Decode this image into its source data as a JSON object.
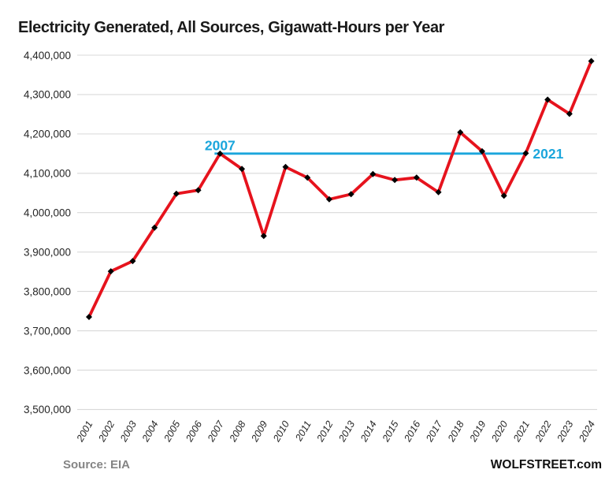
{
  "page": {
    "title": "Electricity Generated, All Sources, Gigawatt-Hours per Year",
    "footer": {
      "source": "Source: EIA",
      "brand": "WOLFSTREET.com"
    }
  },
  "colors": {
    "background": "#ffffff",
    "series_line": "#e6131d",
    "marker": "#000000",
    "annotation": "#1ba6dc",
    "gridline": "#d9d9d9",
    "title_text": "#1a1a1a",
    "axis_text": "#262626",
    "source_text": "#848484",
    "brand_text": "#111111"
  },
  "chart_data": {
    "type": "line",
    "title": "Electricity Generated, All Sources, Gigawatt-Hours per Year",
    "xlabel": "",
    "ylabel": "",
    "x": [
      2001,
      2002,
      2003,
      2004,
      2005,
      2006,
      2007,
      2008,
      2009,
      2010,
      2011,
      2012,
      2013,
      2014,
      2015,
      2016,
      2017,
      2018,
      2019,
      2020,
      2021,
      2022,
      2023,
      2024
    ],
    "series": [
      {
        "name": "Electricity generated, all sources (gigawatt-hours per year)",
        "color": "#e6131d",
        "values": [
          3735000,
          3851000,
          3877000,
          3962000,
          4048000,
          4057000,
          4150000,
          4111000,
          3941000,
          4116000,
          4089000,
          4034000,
          4047000,
          4098000,
          4083000,
          4089000,
          4052000,
          4204000,
          4156000,
          4043000,
          4151000,
          4287000,
          4251000,
          4385000
        ]
      }
    ],
    "ylim": [
      3500000,
      4400000
    ],
    "yticks": [
      3500000,
      3600000,
      3700000,
      3800000,
      3900000,
      4000000,
      4100000,
      4200000,
      4300000,
      4400000
    ],
    "ytick_labels": [
      "3,500,000",
      "3,600,000",
      "3,700,000",
      "3,800,000",
      "3,900,000",
      "4,000,000",
      "4,100,000",
      "4,200,000",
      "4,300,000",
      "4,400,000"
    ],
    "grid": "horizontal",
    "legend": "none",
    "marker": "diamond",
    "annotations": [
      {
        "type": "hline_segment",
        "from_x": 2007,
        "to_x": 2021,
        "value": 4150000,
        "label_start": "2007",
        "label_end": "2021",
        "color": "#1ba6dc"
      }
    ]
  }
}
